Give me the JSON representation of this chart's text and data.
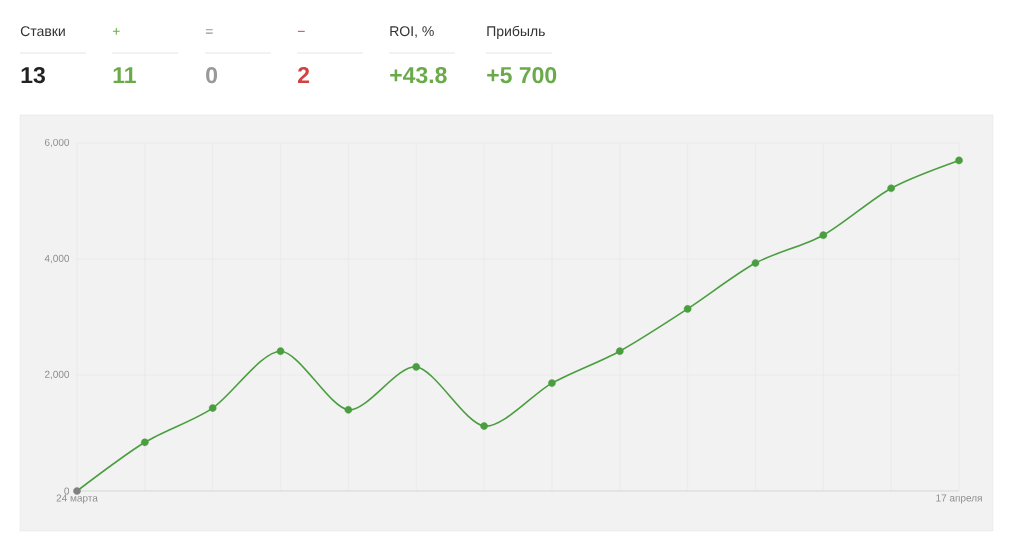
{
  "chart_data": [
    {
      "type": "other",
      "categories": [
        "Ставки",
        "+",
        "=",
        "−",
        "ROI, %",
        "Прибыль"
      ],
      "value_labels": [
        "13",
        "11",
        "0",
        "2",
        "+43.8",
        "+5 700"
      ],
      "colors": [
        "#222222",
        "#6aaa4b",
        "#999999",
        "#d0433e",
        "#6aaa4b",
        "#6aaa4b"
      ]
    },
    {
      "type": "line",
      "categories": [
        "24 марта",
        null,
        null,
        null,
        null,
        null,
        null,
        null,
        null,
        null,
        null,
        null,
        null,
        "17 апреля"
      ],
      "series": [
        {
          "color": "#4a9e3f",
          "values": [
            0,
            840,
            1430,
            2410,
            1400,
            2140,
            1120,
            1860,
            2410,
            3140,
            3930,
            4410,
            5220,
            5700
          ]
        }
      ],
      "colors": [
        "#808080",
        "#4a9e3f",
        "#4a9e3f",
        "#4a9e3f",
        "#4a9e3f",
        "#4a9e3f",
        "#4a9e3f",
        "#4a9e3f",
        "#4a9e3f",
        "#4a9e3f",
        "#4a9e3f",
        "#4a9e3f",
        "#4a9e3f",
        "#4a9e3f"
      ],
      "ylim": [
        0,
        6000
      ],
      "yticks": [
        0,
        {
          "value": 2000,
          "label": "2,000"
        },
        {
          "value": 4000,
          "label": "4,000"
        },
        {
          "value": 6000,
          "label": "6,000"
        }
      ],
      "grid": true,
      "marker": "circle",
      "line_style": "solid"
    }
  ]
}
